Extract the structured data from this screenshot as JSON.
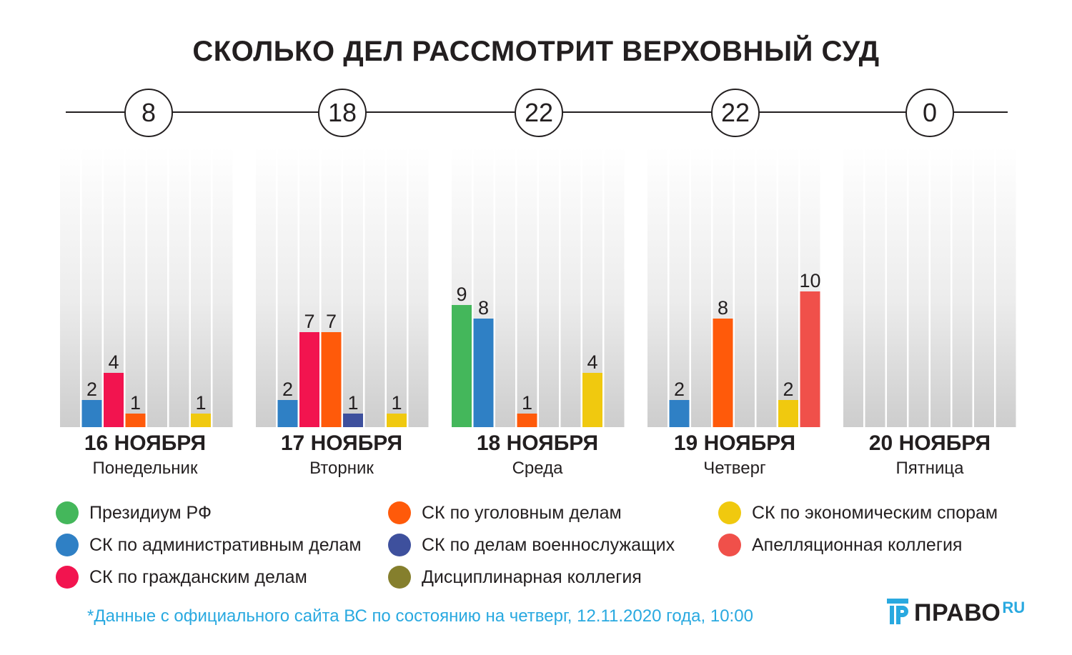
{
  "chart_data": {
    "type": "bar",
    "title": "СКОЛЬКО ДЕЛ РАССМОТРИТ ВЕРХОВНЫЙ СУД",
    "categories": [
      {
        "date": "16 НОЯБРЯ",
        "weekday": "Понедельник",
        "total": "8"
      },
      {
        "date": "17 НОЯБРЯ",
        "weekday": "Вторник",
        "total": "18"
      },
      {
        "date": "18 НОЯБРЯ",
        "weekday": "Среда",
        "total": "22"
      },
      {
        "date": "19 НОЯБРЯ",
        "weekday": "Четверг",
        "total": "22"
      },
      {
        "date": "20 НОЯБРЯ",
        "weekday": "Пятница",
        "total": "0"
      }
    ],
    "series": [
      {
        "name": "Президиум РФ",
        "color": "#44b75b",
        "values": [
          0,
          0,
          9,
          0,
          0
        ]
      },
      {
        "name": "СК по административным делам",
        "color": "#2f80c5",
        "values": [
          2,
          2,
          8,
          2,
          0
        ]
      },
      {
        "name": "СК по гражданским делам",
        "color": "#f2144f",
        "values": [
          4,
          7,
          0,
          0,
          0
        ]
      },
      {
        "name": "СК по уголовным делам",
        "color": "#ff5a0a",
        "values": [
          1,
          7,
          1,
          8,
          0
        ]
      },
      {
        "name": "СК по делам военнослужащих",
        "color": "#3e509d",
        "values": [
          0,
          1,
          0,
          0,
          0
        ]
      },
      {
        "name": "Дисциплинарная коллегия",
        "color": "#857f2d",
        "values": [
          0,
          0,
          0,
          0,
          0
        ]
      },
      {
        "name": "СК по экономическим спорам",
        "color": "#f0c90f",
        "values": [
          1,
          1,
          4,
          2,
          0
        ]
      },
      {
        "name": "Апелляционная коллегия",
        "color": "#f0504a",
        "values": [
          0,
          0,
          0,
          10,
          0
        ]
      }
    ],
    "ylim": [
      0,
      10
    ],
    "xlabel": "",
    "ylabel": ""
  },
  "legend": {
    "col1": [
      "Президиум РФ",
      "СК по административным делам",
      "СК по гражданским делам"
    ],
    "col2": [
      "СК по уголовным делам",
      "СК по делам военнослужащих",
      "Дисциплинарная коллегия"
    ],
    "col3": [
      "СК по экономическим спорам",
      "Апелляционная коллегия"
    ]
  },
  "footnote": "*Данные с официального сайта ВС по состоянию на четверг, 12.11.2020 года, 10:00",
  "logo": {
    "text": "ПРАВО",
    "suffix": "RU"
  },
  "colors": {
    "text": "#231f20",
    "accent": "#29a9e0"
  }
}
